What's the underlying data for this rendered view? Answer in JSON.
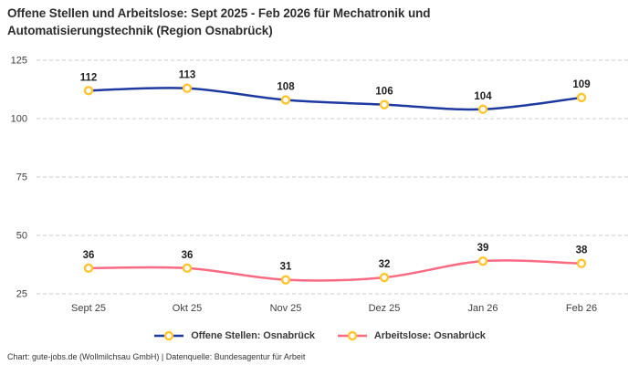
{
  "header": {
    "title": "Offene Stellen und Arbeitslose: Sept 2025 - Feb 2026 für Mechatronik und Automatisierungstechnik (Region Osnabrück)"
  },
  "chart_data": {
    "type": "line",
    "title": "Offene Stellen und Arbeitslose: Sept 2025 - Feb 2026 für Mechatronik und Automatisierungstechnik (Region Osnabrück)",
    "categories": [
      "Sept 25",
      "Okt 25",
      "Nov 25",
      "Dez 25",
      "Jan 26",
      "Feb 26"
    ],
    "series": [
      {
        "name": "Offene Stellen: Osnabrück",
        "values": [
          112,
          113,
          108,
          106,
          104,
          109
        ],
        "color": "#1e3a9f"
      },
      {
        "name": "Arbeitslose: Osnabrück",
        "values": [
          36,
          36,
          31,
          32,
          39,
          38
        ],
        "color": "#f96b82"
      }
    ],
    "marker_color": "#fec52e",
    "marker_fill": "#ffffff",
    "yticks": [
      125,
      100,
      75,
      50,
      25
    ],
    "ylim": [
      25,
      125
    ],
    "xlabel": "",
    "ylabel": "",
    "grid": "horizontal-dashed",
    "grid_color": "#cbcbcb",
    "legend_position": "bottom",
    "data_labels": true
  },
  "footer": {
    "text": "Chart: gute-jobs.de (Wollmilchsau GmbH) | Datenquelle: Bundesagentur für Arbeit"
  }
}
